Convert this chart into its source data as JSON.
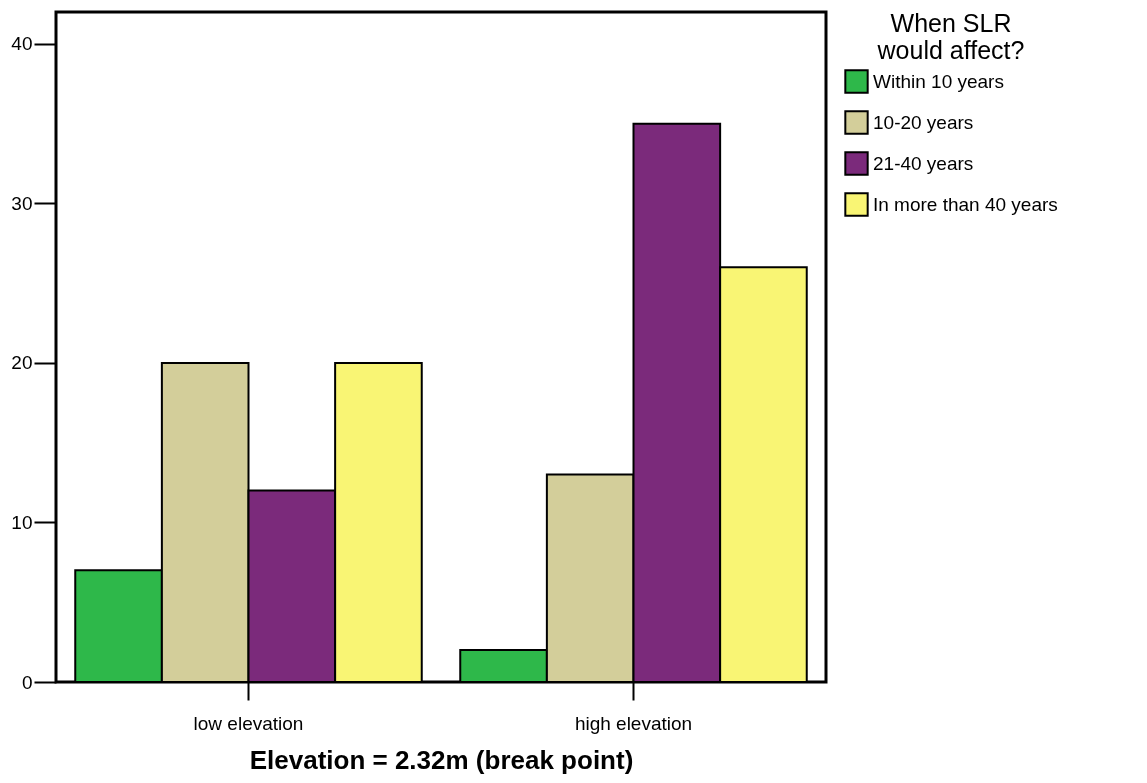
{
  "chart_data": {
    "type": "bar",
    "xlabel": "Elevation = 2.32m (break point)",
    "legend_title": "When SLR would affect?",
    "categories": [
      "low elevation",
      "high elevation"
    ],
    "series": [
      {
        "name": "Within 10 years",
        "color": "#2eb84a",
        "values": [
          7,
          2
        ]
      },
      {
        "name": "10-20 years",
        "color": "#d3ce9a",
        "values": [
          20,
          13
        ]
      },
      {
        "name": "21-40 years",
        "color": "#7b2a7b",
        "values": [
          12,
          35
        ]
      },
      {
        "name": "In more than 40 years",
        "color": "#f9f574",
        "values": [
          20,
          26
        ]
      }
    ],
    "ylim": [
      0,
      42
    ],
    "yticks": [
      0,
      10,
      20,
      30,
      40
    ],
    "grid": false,
    "legend": "right"
  }
}
